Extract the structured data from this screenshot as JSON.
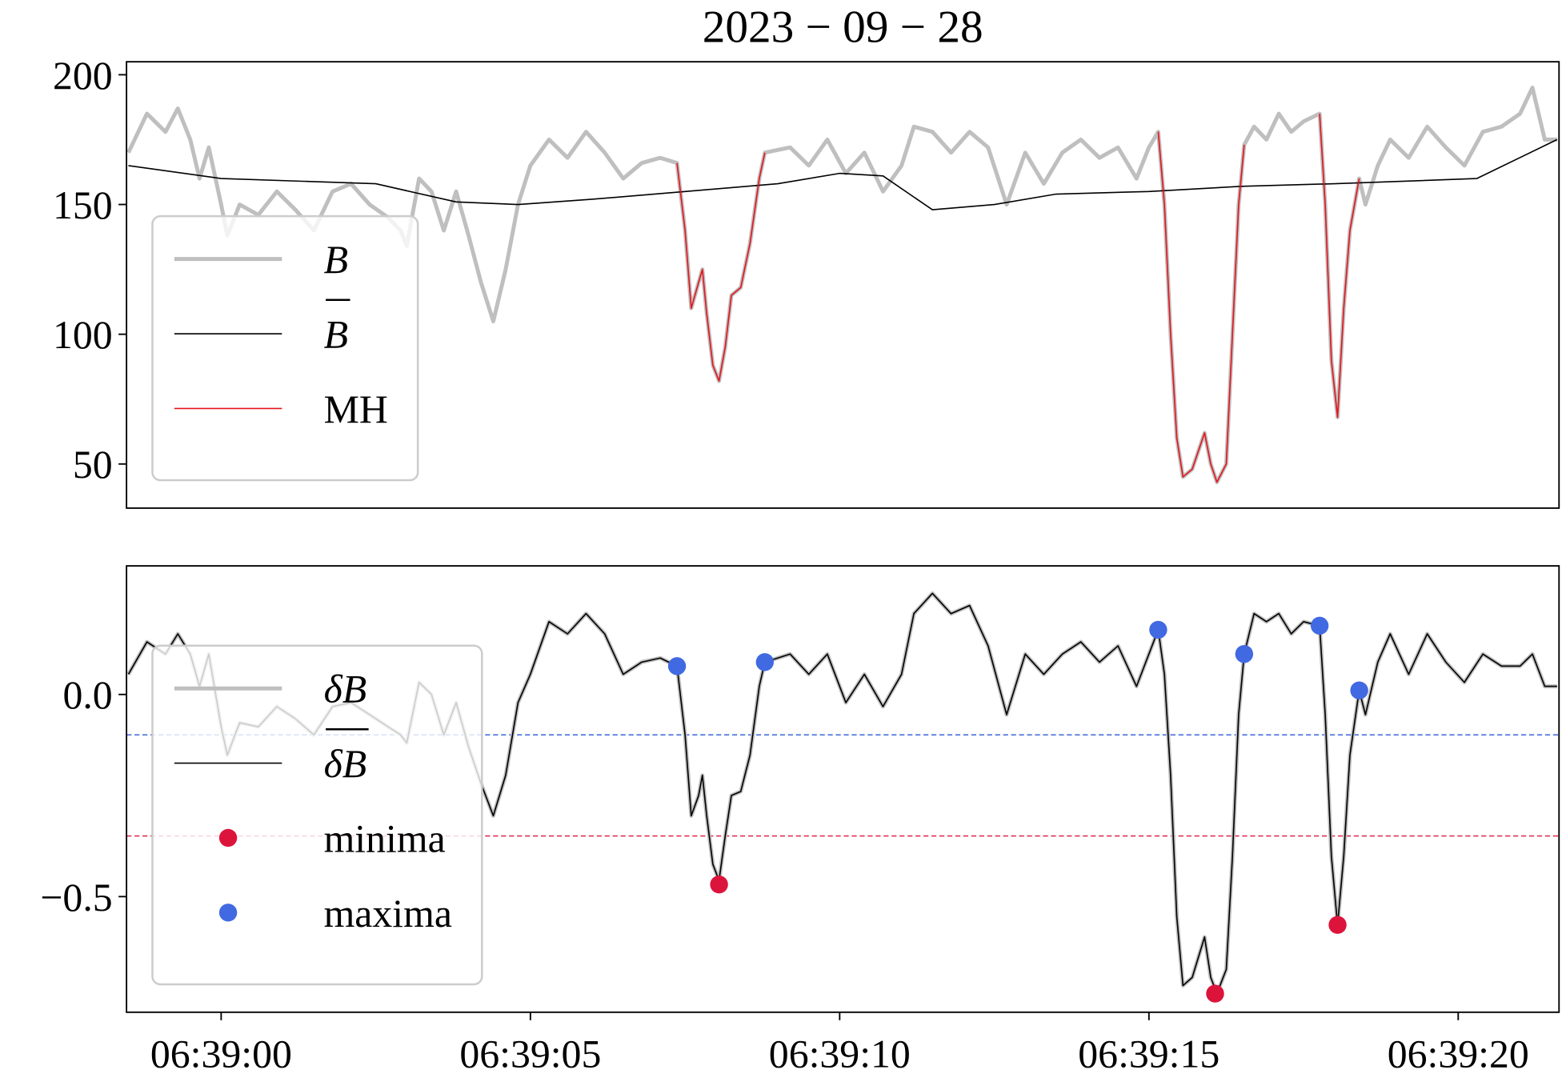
{
  "chart_data": [
    {
      "type": "line",
      "title": "2023 − 09 − 28",
      "xlim": [
        -1.53,
        21.63
      ],
      "ylim": [
        33,
        205
      ],
      "yticks": [
        50,
        100,
        150,
        200
      ],
      "legend": "lower left",
      "x": [
        -1.5,
        -1.2,
        -0.9,
        -0.7,
        -0.5,
        -0.35,
        -0.2,
        0,
        0.1,
        0.3,
        0.6,
        0.9,
        1.2,
        1.5,
        1.8,
        2.1,
        2.4,
        2.7,
        2.9,
        3.0,
        3.2,
        3.4,
        3.6,
        3.8,
        4.0,
        4.2,
        4.4,
        4.6,
        4.8,
        5.0,
        5.3,
        5.6,
        5.9,
        6.2,
        6.5,
        6.8,
        7.1,
        7.37,
        7.5,
        7.6,
        7.72,
        7.78,
        7.85,
        7.95,
        8.05,
        8.15,
        8.25,
        8.4,
        8.55,
        8.7,
        8.79,
        9.2,
        9.5,
        9.8,
        10.1,
        10.4,
        10.7,
        11.0,
        11.2,
        11.5,
        11.8,
        12.1,
        12.4,
        12.7,
        13.0,
        13.3,
        13.6,
        13.9,
        14.2,
        14.5,
        14.8,
        15.0,
        15.15,
        15.25,
        15.35,
        15.45,
        15.55,
        15.7,
        15.9,
        16.0,
        16.1,
        16.25,
        16.35,
        16.45,
        16.54,
        16.7,
        16.9,
        17.1,
        17.3,
        17.5,
        17.76,
        17.85,
        17.95,
        18.05,
        18.15,
        18.25,
        18.4,
        18.5,
        18.7,
        18.9,
        19.2,
        19.5,
        19.8,
        20.1,
        20.4,
        20.7,
        21.0,
        21.2,
        21.4,
        21.6
      ],
      "series": [
        {
          "name": "B",
          "italic": true,
          "color": "#bfbfbf",
          "linewidth": 4,
          "values": [
            170,
            185,
            178,
            187,
            175,
            160,
            172,
            150,
            138,
            150,
            146,
            155,
            148,
            140,
            155,
            158,
            150,
            145,
            140,
            134,
            160,
            155,
            140,
            155,
            138,
            120,
            105,
            125,
            150,
            165,
            175,
            168,
            178,
            170,
            160,
            166,
            168,
            166,
            140,
            110,
            120,
            125,
            108,
            88,
            82,
            95,
            115,
            118,
            135,
            160,
            170,
            172,
            165,
            175,
            162,
            170,
            155,
            165,
            180,
            178,
            170,
            178,
            172,
            150,
            170,
            158,
            170,
            175,
            168,
            172,
            160,
            172,
            178,
            150,
            100,
            60,
            45,
            48,
            62,
            50,
            43,
            50,
            100,
            150,
            173,
            180,
            175,
            185,
            178,
            182,
            185,
            150,
            90,
            68,
            110,
            140,
            160,
            150,
            165,
            175,
            168,
            180,
            172,
            165,
            178,
            180,
            185,
            195,
            175,
            175
          ]
        },
        {
          "name": "B",
          "italic": true,
          "overline": true,
          "color": "#000000",
          "linewidth": 1.3,
          "x": [
            -1.5,
            0,
            2.5,
            3.8,
            4.8,
            6,
            7.5,
            9,
            10,
            10.7,
            11.5,
            12.5,
            13.5,
            15,
            16.5,
            18,
            20.3,
            21.6
          ],
          "values": [
            165,
            160,
            158,
            151,
            150,
            152,
            155,
            158,
            162,
            161,
            148,
            150,
            154,
            155,
            157,
            158,
            160,
            175
          ]
        },
        {
          "name": "MH",
          "color": "#e3141c",
          "linewidth": 1.3,
          "x": [
            7.37,
            7.5,
            7.6,
            7.72,
            7.78,
            7.85,
            7.95,
            8.05,
            8.15,
            8.25,
            8.4,
            8.55,
            8.7,
            8.79,
            12,
            15.15,
            15.25,
            15.35,
            15.45,
            15.55,
            15.7,
            15.9,
            16.0,
            16.1,
            16.25,
            16.35,
            16.45,
            16.54,
            17,
            17.76,
            17.85,
            17.95,
            18.05,
            18.15,
            18.25,
            18.4
          ],
          "values": [
            166,
            140,
            110,
            120,
            125,
            108,
            88,
            82,
            95,
            115,
            118,
            135,
            160,
            170,
            null,
            178,
            150,
            100,
            60,
            45,
            48,
            62,
            50,
            43,
            50,
            100,
            150,
            173,
            null,
            185,
            150,
            90,
            68,
            110,
            140,
            160
          ]
        }
      ]
    },
    {
      "type": "line",
      "xlim": [
        -1.53,
        21.63
      ],
      "ylim": [
        -0.786,
        0.318
      ],
      "yticks": [
        {
          "value": -0.5,
          "label": "−0.5"
        },
        {
          "value": 0,
          "label": "0.0"
        }
      ],
      "legend": "lower left",
      "xticks": [
        {
          "value": 0,
          "label": "06:39:00"
        },
        {
          "value": 5,
          "label": "06:39:05"
        },
        {
          "value": 10,
          "label": "06:39:10"
        },
        {
          "value": 15,
          "label": "06:39:15"
        },
        {
          "value": 20,
          "label": "06:39:20"
        }
      ],
      "hlines": [
        {
          "value": -0.1,
          "color": "#3a66d8"
        },
        {
          "value": -0.35,
          "color": "#dc143c"
        }
      ],
      "x": [
        -1.5,
        -1.2,
        -0.9,
        -0.7,
        -0.5,
        -0.35,
        -0.2,
        0,
        0.1,
        0.3,
        0.6,
        0.9,
        1.2,
        1.5,
        1.8,
        2.1,
        2.4,
        2.7,
        2.9,
        3.0,
        3.2,
        3.4,
        3.6,
        3.8,
        4.0,
        4.2,
        4.4,
        4.6,
        4.8,
        5.0,
        5.3,
        5.6,
        5.9,
        6.2,
        6.5,
        6.8,
        7.1,
        7.37,
        7.5,
        7.6,
        7.72,
        7.78,
        7.85,
        7.95,
        8.05,
        8.15,
        8.25,
        8.4,
        8.55,
        8.7,
        8.79,
        9.2,
        9.5,
        9.8,
        10.1,
        10.4,
        10.7,
        11.0,
        11.2,
        11.5,
        11.8,
        12.1,
        12.4,
        12.7,
        13.0,
        13.3,
        13.6,
        13.9,
        14.2,
        14.5,
        14.8,
        15.0,
        15.15,
        15.25,
        15.35,
        15.45,
        15.55,
        15.7,
        15.9,
        16.0,
        16.1,
        16.25,
        16.35,
        16.45,
        16.54,
        16.7,
        16.9,
        17.1,
        17.3,
        17.5,
        17.76,
        17.85,
        17.95,
        18.05,
        18.15,
        18.25,
        18.4,
        18.5,
        18.7,
        18.9,
        19.2,
        19.5,
        19.8,
        20.1,
        20.4,
        20.7,
        21.0,
        21.2,
        21.4,
        21.6
      ],
      "series": [
        {
          "name": "δB",
          "italic": true,
          "color": "#bfbfbf",
          "linewidth": 4,
          "values": [
            0.05,
            0.13,
            0.1,
            0.15,
            0.1,
            0.02,
            0.1,
            -0.08,
            -0.15,
            -0.07,
            -0.08,
            -0.03,
            -0.06,
            -0.1,
            -0.03,
            -0.02,
            -0.05,
            -0.08,
            -0.1,
            -0.12,
            0.03,
            0.0,
            -0.1,
            -0.02,
            -0.13,
            -0.22,
            -0.3,
            -0.2,
            -0.02,
            0.05,
            0.18,
            0.15,
            0.2,
            0.15,
            0.05,
            0.08,
            0.09,
            0.07,
            -0.1,
            -0.3,
            -0.25,
            -0.2,
            -0.3,
            -0.42,
            -0.46,
            -0.35,
            -0.25,
            -0.24,
            -0.15,
            0.02,
            0.08,
            0.1,
            0.05,
            0.1,
            -0.02,
            0.05,
            -0.03,
            0.05,
            0.2,
            0.25,
            0.2,
            0.22,
            0.12,
            -0.05,
            0.1,
            0.05,
            0.1,
            0.13,
            0.08,
            0.12,
            0.02,
            0.1,
            0.16,
            0.05,
            -0.2,
            -0.55,
            -0.72,
            -0.7,
            -0.6,
            -0.7,
            -0.74,
            -0.68,
            -0.4,
            -0.05,
            0.1,
            0.2,
            0.18,
            0.2,
            0.15,
            0.18,
            0.17,
            -0.05,
            -0.4,
            -0.57,
            -0.4,
            -0.15,
            0.01,
            -0.05,
            0.08,
            0.15,
            0.05,
            0.15,
            0.08,
            0.03,
            0.1,
            0.07,
            0.07,
            0.1,
            0.02,
            0.02
          ]
        },
        {
          "name": "δB",
          "italic": true,
          "overline": true,
          "color": "#000000",
          "linewidth": 1.3,
          "values": [
            0.05,
            0.13,
            0.1,
            0.15,
            0.1,
            0.02,
            0.1,
            -0.08,
            -0.15,
            -0.07,
            -0.08,
            -0.03,
            -0.06,
            -0.1,
            -0.03,
            -0.02,
            -0.05,
            -0.08,
            -0.1,
            -0.12,
            0.03,
            0.0,
            -0.1,
            -0.02,
            -0.13,
            -0.22,
            -0.3,
            -0.2,
            -0.02,
            0.05,
            0.18,
            0.15,
            0.2,
            0.15,
            0.05,
            0.08,
            0.09,
            0.07,
            -0.1,
            -0.3,
            -0.25,
            -0.2,
            -0.3,
            -0.42,
            -0.46,
            -0.35,
            -0.25,
            -0.24,
            -0.15,
            0.02,
            0.08,
            0.1,
            0.05,
            0.1,
            -0.02,
            0.05,
            -0.03,
            0.05,
            0.2,
            0.25,
            0.2,
            0.22,
            0.12,
            -0.05,
            0.1,
            0.05,
            0.1,
            0.13,
            0.08,
            0.12,
            0.02,
            0.1,
            0.16,
            0.05,
            -0.2,
            -0.55,
            -0.72,
            -0.7,
            -0.6,
            -0.7,
            -0.74,
            -0.68,
            -0.4,
            -0.05,
            0.1,
            0.2,
            0.18,
            0.2,
            0.15,
            0.18,
            0.17,
            -0.05,
            -0.4,
            -0.57,
            -0.4,
            -0.15,
            0.01,
            -0.05,
            0.08,
            0.15,
            0.05,
            0.15,
            0.08,
            0.03,
            0.1,
            0.07,
            0.07,
            0.1,
            0.02,
            0.02
          ]
        },
        {
          "name": "minima",
          "marker": true,
          "color": "#dc143c",
          "x": [
            8.05,
            16.07,
            18.05
          ],
          "values": [
            -0.47,
            -0.74,
            -0.57
          ]
        },
        {
          "name": "maxima",
          "marker": true,
          "color": "#4169e1",
          "x": [
            7.37,
            8.79,
            15.15,
            16.54,
            17.76,
            18.4
          ],
          "values": [
            0.07,
            0.08,
            0.16,
            0.1,
            0.17,
            0.01
          ]
        }
      ]
    }
  ]
}
